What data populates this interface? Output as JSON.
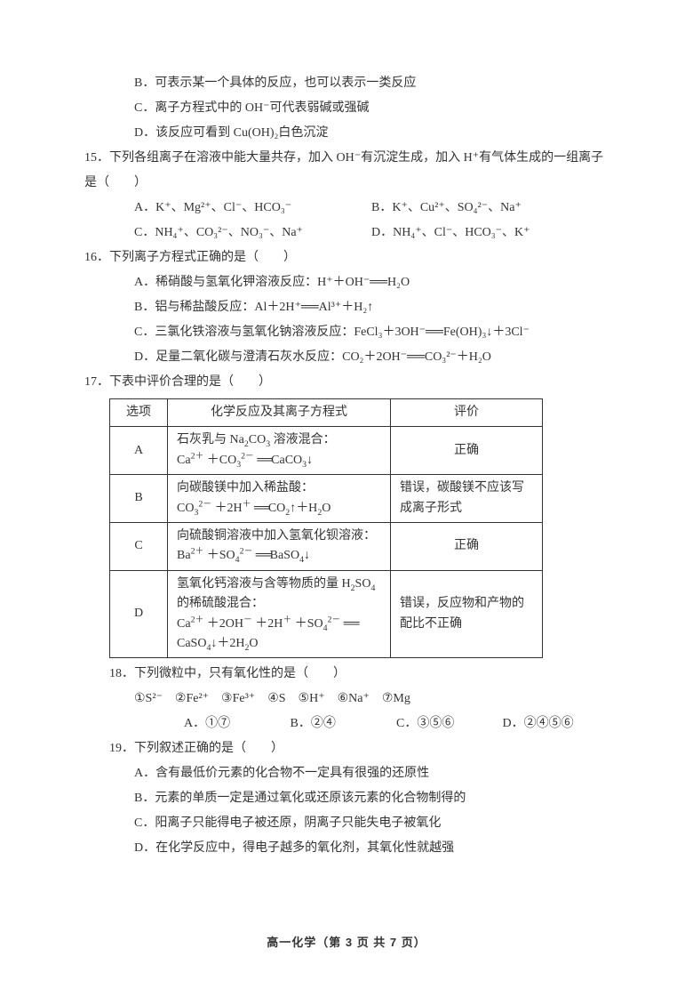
{
  "q14": {
    "optB": "B．可表示某一个具体的反应，也可以表示一类反应",
    "optC": "C．离子方程式中的 OH⁻可代表弱碱或强碱",
    "optD": "D．该反应可看到 Cu(OH)₂白色沉淀"
  },
  "q15": {
    "stem": "15．下列各组离子在溶液中能大量共存，加入 OH⁻有沉淀生成，加入 H⁺有气体生成的一组离子是（　　）",
    "optA": "A．K⁺、Mg²⁺、Cl⁻、HCO₃⁻",
    "optB": "B．K⁺、Cu²⁺、SO₄²⁻、Na⁺",
    "optC": "C．NH₄⁺、CO₃²⁻、NO₃⁻、Na⁺",
    "optD": "D．NH₄⁺、Cl⁻、HCO₃⁻、K⁺"
  },
  "q16": {
    "stem": "16．下列离子方程式正确的是（　　）",
    "optA": "A．稀硝酸与氢氧化钾溶液反应：H⁺＋OH⁻══H₂O",
    "optB": "B．铝与稀盐酸反应：Al＋2H⁺══Al³⁺＋H₂↑",
    "optC": "C．三氯化铁溶液与氢氧化钠溶液反应：FeCl₃＋3OH⁻══Fe(OH)₃↓＋3Cl⁻",
    "optD": "D．足量二氧化碳与澄清石灰水反应：CO₂＋2OH⁻══CO₃²⁻＋H₂O"
  },
  "q17": {
    "stem": "17．下表中评价合理的是（　　）",
    "table": {
      "headers": [
        "选项",
        "化学反应及其离子方程式",
        "评价"
      ],
      "rows": [
        {
          "opt": "A",
          "eq": "石灰乳与 Na₂CO₃ 溶液混合：\nCa²⁺ ＋CO₃²⁻ ══CaCO₃↓",
          "ev": "正确"
        },
        {
          "opt": "B",
          "eq": "向碳酸镁中加入稀盐酸：\nCO₃²⁻ ＋2H⁺ ══CO₂↑＋H₂O",
          "ev": "错误，碳酸镁不应该写成离子形式"
        },
        {
          "opt": "C",
          "eq": "向硫酸铜溶液中加入氢氧化钡溶液：Ba²⁺ ＋SO₄²⁻ ══BaSO₄↓",
          "ev": "正确"
        },
        {
          "opt": "D",
          "eq": "氢氧化钙溶液与含等物质的量 H₂SO₄ 的稀硫酸混合：\nCa²⁺ ＋2OH⁻ ＋2H⁺ ＋SO₄²⁻ ══ CaSO₄↓＋2H₂O",
          "ev": "错误，反应物和产物的配比不正确"
        }
      ]
    }
  },
  "q18": {
    "stem": "18．下列微粒中，只有氧化性的是（　　）",
    "species": "①S²⁻　②Fe²⁺　③Fe³⁺　④S　⑤H⁺　⑥Na⁺　⑦Mg",
    "optA": "A．①⑦",
    "optB": "B．②④",
    "optC": "C．③⑤⑥",
    "optD": "D．②④⑤⑥"
  },
  "q19": {
    "stem": "19．下列叙述正确的是（　　）",
    "optA": "A．含有最低价元素的化合物不一定具有很强的还原性",
    "optB": "B．元素的单质一定是通过氧化或还原该元素的化合物制得的",
    "optC": "C．阳离子只能得电子被还原，阴离子只能失电子被氧化",
    "optD": "D．在化学反应中，得电子越多的氧化剂，其氧化性就越强"
  },
  "footer": "高一化学（第 3 页 共 7 页）"
}
